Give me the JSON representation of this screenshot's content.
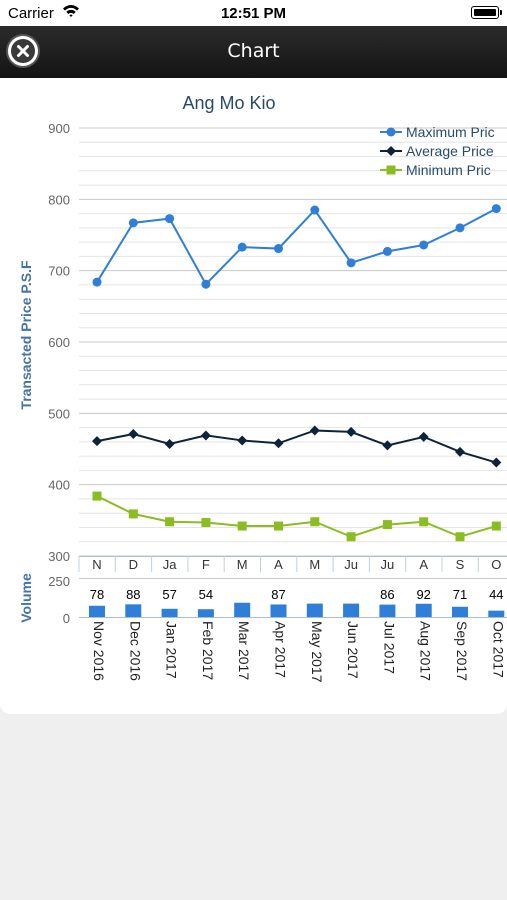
{
  "status_bar": {
    "carrier": "Carrier",
    "time": "12:51 PM"
  },
  "nav": {
    "title": "Chart"
  },
  "chart_data": {
    "type": "line",
    "title": "Ang Mo Kio",
    "ylabel": "Transacted Price P.S.F",
    "ylim": [
      300,
      900
    ],
    "yticks": [
      "300",
      "400",
      "500",
      "600",
      "700",
      "800",
      "900"
    ],
    "x_short": [
      "N",
      "D",
      "Ja",
      "F",
      "M",
      "A",
      "M",
      "Ju",
      "Ju",
      "A",
      "S",
      "O"
    ],
    "categories": [
      "Nov 2016",
      "Dec 2016",
      "Jan 2017",
      "Feb 2017",
      "Mar 2017",
      "Apr 2017",
      "May 2017",
      "Jun 2017",
      "Jul 2017",
      "Aug 2017",
      "Sep 2017",
      "Oct 2017"
    ],
    "series": [
      {
        "name": "Maximum Price",
        "legend_label": "Maximum Pric",
        "color": "#2f7ed8",
        "marker": "circle",
        "values": [
          684,
          767,
          773,
          681,
          733,
          731,
          785,
          711,
          727,
          736,
          760,
          787
        ]
      },
      {
        "name": "Average Price",
        "legend_label": "Average Price",
        "color": "#0d233a",
        "marker": "diamond",
        "values": [
          461,
          471,
          457,
          469,
          462,
          458,
          476,
          474,
          455,
          467,
          446,
          431
        ]
      },
      {
        "name": "Minimum Price",
        "legend_label": "Minimum Pric",
        "color": "#8bbc21",
        "marker": "square",
        "values": [
          384,
          359,
          348,
          347,
          342,
          342,
          348,
          327,
          344,
          348,
          327,
          342
        ]
      }
    ],
    "grid": true,
    "legend": "top-right",
    "volume": {
      "ylabel": "Volume",
      "yticks": [
        "0",
        "250"
      ],
      "ylim": [
        0,
        250
      ],
      "color": "#2f7ed8",
      "values": [
        78,
        88,
        57,
        54,
        99,
        87,
        93,
        93,
        86,
        92,
        71,
        44
      ],
      "labels": [
        "78",
        "88",
        "57",
        "54",
        "",
        "87",
        "",
        "",
        "86",
        "92",
        "71",
        "44"
      ]
    }
  }
}
